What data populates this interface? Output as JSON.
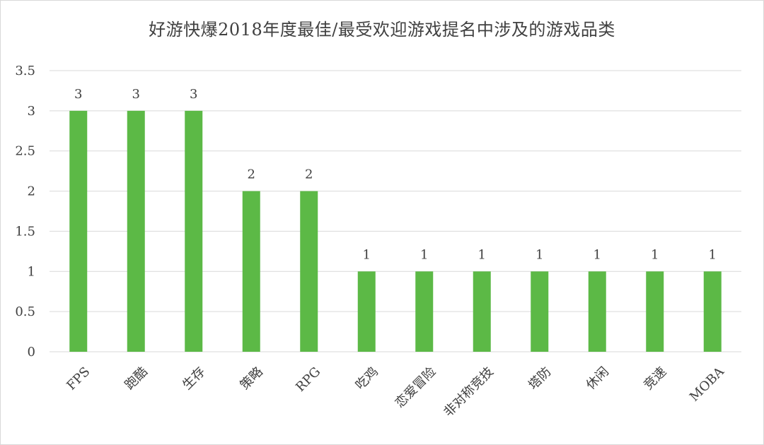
{
  "chart_data": {
    "type": "bar",
    "title": "好游快爆2018年度最佳/最受欢迎游戏提名中涉及的游戏品类",
    "categories": [
      "FPS",
      "跑酷",
      "生存",
      "策略",
      "RPG",
      "吃鸡",
      "恋爱冒险",
      "非对称竞技",
      "塔防",
      "休闲",
      "竞速",
      "MOBA"
    ],
    "values": [
      3,
      3,
      3,
      2,
      2,
      1,
      1,
      1,
      1,
      1,
      1,
      1
    ],
    "data_labels": [
      "3",
      "3",
      "3",
      "2",
      "2",
      "1",
      "1",
      "1",
      "1",
      "1",
      "1",
      "1"
    ],
    "y_ticks": [
      "0",
      "0.5",
      "1",
      "1.5",
      "2",
      "2.5",
      "3",
      "3.5"
    ],
    "ylim": [
      0,
      3.5
    ],
    "grid": true,
    "legend": "none",
    "bar_color": "#5cb946",
    "grid_color": "#d9d9d9",
    "text_color": "#404040"
  }
}
